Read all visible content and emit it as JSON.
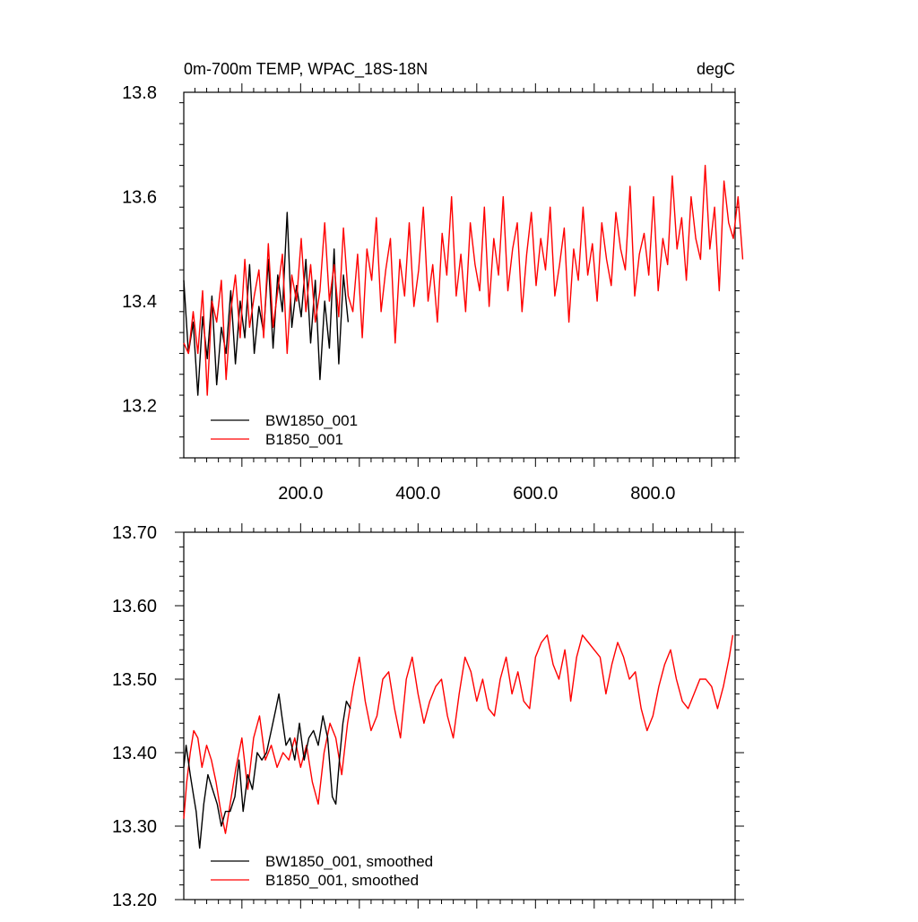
{
  "chart_data": [
    {
      "type": "line",
      "title": "0m-700m TEMP, WPAC_18S-18N",
      "units": "degC",
      "xlim": [
        1,
        940
      ],
      "ylim": [
        13.1,
        13.8
      ],
      "xticks": [
        200,
        400,
        600,
        800
      ],
      "xtick_labels": [
        "200.0",
        "400.0",
        "600.0",
        "800.0"
      ],
      "yticks": [
        13.2,
        13.4,
        13.6,
        13.8
      ],
      "ytick_labels": [
        "13.2",
        "13.4",
        "13.6",
        "13.8"
      ],
      "legend_position": "bottom-left",
      "series": [
        {
          "name": "BW1850_001",
          "color": "#000000",
          "x_start": 1,
          "x_step": 8,
          "values": [
            13.44,
            13.3,
            13.36,
            13.22,
            13.37,
            13.29,
            13.41,
            13.24,
            13.35,
            13.3,
            13.42,
            13.28,
            13.4,
            13.33,
            13.47,
            13.3,
            13.39,
            13.34,
            13.48,
            13.31,
            13.45,
            13.38,
            13.57,
            13.35,
            13.43,
            13.37,
            13.48,
            13.32,
            13.44,
            13.25,
            13.4,
            13.31,
            13.5,
            13.28,
            13.45,
            13.36
          ]
        },
        {
          "name": "B1850_001",
          "color": "#ff0000",
          "x_start": 1,
          "x_step": 8,
          "values": [
            13.32,
            13.3,
            13.38,
            13.3,
            13.42,
            13.22,
            13.4,
            13.36,
            13.44,
            13.25,
            13.38,
            13.45,
            13.33,
            13.48,
            13.35,
            13.41,
            13.46,
            13.33,
            13.51,
            13.35,
            13.42,
            13.49,
            13.3,
            13.45,
            13.4,
            13.52,
            13.38,
            13.47,
            13.36,
            13.42,
            13.55,
            13.4,
            13.47,
            13.37,
            13.54,
            13.41,
            13.38,
            13.49,
            13.33,
            13.5,
            13.44,
            13.56,
            13.38,
            13.46,
            13.52,
            13.32,
            13.48,
            13.41,
            13.55,
            13.39,
            13.46,
            13.58,
            13.4,
            13.47,
            13.36,
            13.53,
            13.45,
            13.6,
            13.41,
            13.49,
            13.38,
            13.55,
            13.47,
            13.42,
            13.58,
            13.39,
            13.52,
            13.45,
            13.6,
            13.42,
            13.5,
            13.55,
            13.38,
            13.49,
            13.57,
            13.43,
            13.52,
            13.46,
            13.58,
            13.41,
            13.47,
            13.54,
            13.36,
            13.5,
            13.44,
            13.58,
            13.45,
            13.51,
            13.4,
            13.55,
            13.48,
            13.43,
            13.57,
            13.5,
            13.46,
            13.62,
            13.41,
            13.49,
            13.53,
            13.45,
            13.6,
            13.42,
            13.52,
            13.47,
            13.64,
            13.5,
            13.56,
            13.44,
            13.6,
            13.52,
            13.48,
            13.66,
            13.5,
            13.58,
            13.42,
            13.63,
            13.55,
            13.52,
            13.6,
            13.48
          ]
        }
      ]
    },
    {
      "type": "line",
      "title": "",
      "xlim": [
        1,
        940
      ],
      "ylim": [
        13.2,
        13.7
      ],
      "yticks": [
        13.2,
        13.3,
        13.4,
        13.5,
        13.6,
        13.7
      ],
      "ytick_labels": [
        "13.20",
        "13.30",
        "13.40",
        "13.50",
        "13.60",
        "13.70"
      ],
      "legend_position": "bottom-left",
      "series": [
        {
          "name": "BW1850_001, smoothed",
          "color": "#000000",
          "x": [
            1,
            5,
            12,
            18,
            22,
            28,
            35,
            42,
            50,
            58,
            65,
            72,
            80,
            88,
            95,
            102,
            110,
            118,
            126,
            134,
            142,
            150,
            158,
            163,
            168,
            175,
            182,
            190,
            198,
            206,
            214,
            222,
            230,
            238,
            246,
            254,
            260,
            266,
            272,
            278,
            285
          ],
          "values": [
            13.38,
            13.41,
            13.37,
            13.34,
            13.32,
            13.27,
            13.33,
            13.37,
            13.35,
            13.33,
            13.3,
            13.32,
            13.32,
            13.34,
            13.39,
            13.32,
            13.37,
            13.35,
            13.4,
            13.39,
            13.4,
            13.43,
            13.46,
            13.48,
            13.45,
            13.41,
            13.42,
            13.39,
            13.44,
            13.39,
            13.42,
            13.43,
            13.41,
            13.45,
            13.42,
            13.34,
            13.33,
            13.39,
            13.44,
            13.47,
            13.46
          ]
        },
        {
          "name": "B1850_001, smoothed",
          "color": "#ff0000",
          "x": [
            1,
            6,
            12,
            18,
            25,
            32,
            40,
            48,
            56,
            64,
            72,
            80,
            90,
            100,
            110,
            120,
            130,
            140,
            150,
            160,
            170,
            180,
            190,
            200,
            210,
            220,
            230,
            240,
            250,
            260,
            270,
            280,
            290,
            300,
            310,
            320,
            330,
            340,
            350,
            360,
            370,
            380,
            390,
            400,
            410,
            420,
            430,
            440,
            450,
            460,
            470,
            480,
            490,
            500,
            510,
            520,
            530,
            540,
            550,
            560,
            570,
            580,
            590,
            600,
            610,
            620,
            630,
            640,
            650,
            655,
            660,
            670,
            680,
            690,
            700,
            710,
            720,
            730,
            740,
            750,
            760,
            770,
            780,
            790,
            800,
            810,
            820,
            830,
            840,
            850,
            860,
            870,
            880,
            890,
            900,
            910,
            920,
            930,
            936
          ],
          "values": [
            13.31,
            13.36,
            13.4,
            13.43,
            13.42,
            13.38,
            13.41,
            13.39,
            13.36,
            13.32,
            13.29,
            13.33,
            13.38,
            13.42,
            13.35,
            13.42,
            13.45,
            13.39,
            13.41,
            13.38,
            13.4,
            13.39,
            13.42,
            13.38,
            13.41,
            13.36,
            13.33,
            13.4,
            13.44,
            13.42,
            13.37,
            13.44,
            13.49,
            13.53,
            13.47,
            13.43,
            13.45,
            13.5,
            13.51,
            13.46,
            13.42,
            13.5,
            13.53,
            13.48,
            13.44,
            13.47,
            13.49,
            13.5,
            13.45,
            13.42,
            13.48,
            13.53,
            13.51,
            13.47,
            13.5,
            13.46,
            13.45,
            13.5,
            13.53,
            13.48,
            13.51,
            13.47,
            13.46,
            13.53,
            13.55,
            13.56,
            13.52,
            13.5,
            13.54,
            13.51,
            13.47,
            13.53,
            13.56,
            13.55,
            13.54,
            13.53,
            13.48,
            13.52,
            13.55,
            13.53,
            13.5,
            13.51,
            13.46,
            13.43,
            13.45,
            13.49,
            13.52,
            13.54,
            13.5,
            13.47,
            13.46,
            13.48,
            13.5,
            13.5,
            13.49,
            13.46,
            13.49,
            13.53,
            13.56
          ]
        }
      ]
    }
  ]
}
